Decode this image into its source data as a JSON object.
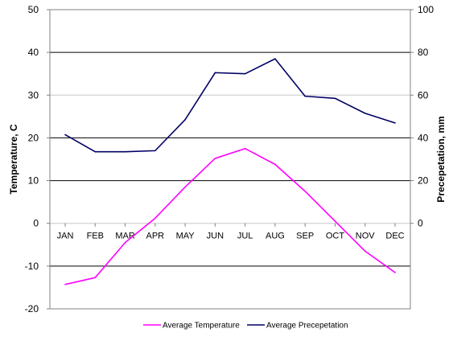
{
  "chart_data": {
    "type": "line",
    "categories": [
      "JAN",
      "FEB",
      "MAR",
      "APR",
      "MAY",
      "JUN",
      "JUL",
      "AUG",
      "SEP",
      "OCT",
      "NOV",
      "DEC"
    ],
    "series": [
      {
        "name": "Average Temperature",
        "axis": "left",
        "color": "#ff00ff",
        "values": [
          -14.3,
          -12.7,
          -4.5,
          1.2,
          8.5,
          15.2,
          17.5,
          13.8,
          7.5,
          0.5,
          -6.5,
          -11.5
        ]
      },
      {
        "name": "Average Precepetation",
        "axis": "right",
        "color": "#000066",
        "values": [
          41.5,
          33.5,
          33.5,
          34.0,
          48.5,
          70.5,
          70.0,
          77.0,
          59.5,
          58.5,
          51.5,
          47.0
        ]
      }
    ],
    "ylabel": "Temperature, C",
    "y2label": "Precepetation, mm",
    "ylim": [
      -20,
      50
    ],
    "y2lim": [
      0,
      100
    ],
    "yticks": [
      "-20",
      "-10",
      "0",
      "10",
      "20",
      "30",
      "40",
      "50"
    ],
    "y2ticks": [
      "0",
      "20",
      "40",
      "60",
      "80",
      "100"
    ],
    "legend_position": "bottom",
    "grid": true
  }
}
